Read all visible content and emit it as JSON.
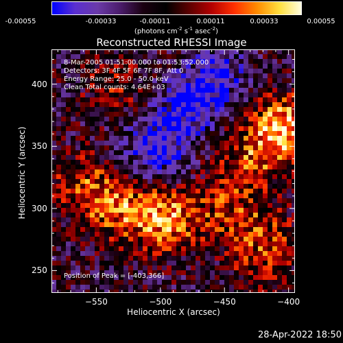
{
  "colorbar": {
    "ticks": [
      "-0.00055",
      "-0.00033",
      "-0.00011",
      "0.00011",
      "0.00033",
      "0.00055"
    ],
    "unit_main": "(photons cm",
    "unit_sup1": "-2",
    "unit_mid1": " s",
    "unit_sup2": "-1",
    "unit_mid2": " asec",
    "unit_sup3": "-2",
    "unit_end": ")",
    "colors": [
      "#0000ff",
      "#5a2fd0",
      "#6a3aa8",
      "#4a1c6a",
      "#1a0010",
      "#000000",
      "#5a0000",
      "#b30000",
      "#ff3000",
      "#ff8c00",
      "#ffe040",
      "#ffffe8"
    ]
  },
  "info": {
    "line1": "8-Mar-2005 01:51:00.000 to 01:53:52.000",
    "line2": "Detectors: 3F 4F 5F 6F 7F 8F, Att 0",
    "line3": "Energy Range: 25.0 - 50.0 keV",
    "line4": "Clean    Total counts: 4.64E+03",
    "peak": "Position of Peak = [-403,366]"
  },
  "footer": {
    "timestamp": "28-Apr-2022 18:50"
  },
  "chart_data": {
    "type": "heatmap",
    "title": "Reconstructed RHESSI Image",
    "xlabel": "Heliocentric X (arcsec)",
    "ylabel": "Heliocentric Y (arcsec)",
    "xlim": [
      -585,
      -395
    ],
    "ylim": [
      232,
      428
    ],
    "xticks": [
      -550,
      -500,
      -450,
      -400
    ],
    "yticks": [
      250,
      300,
      350,
      400
    ],
    "xtick_labels": [
      "−550",
      "−500",
      "−450",
      "−400"
    ],
    "ytick_labels": [
      "250",
      "300",
      "350",
      "400"
    ],
    "value_range": [
      -0.00055,
      0.00055
    ],
    "sources": [
      {
        "x": -403,
        "y": 366,
        "value": 0.00055
      },
      {
        "x": -495,
        "y": 292,
        "value": 0.00048
      },
      {
        "x": -532,
        "y": 300,
        "value": 0.00035
      },
      {
        "x": -560,
        "y": 318,
        "value": 0.0003
      },
      {
        "x": -448,
        "y": 300,
        "value": 0.00025
      },
      {
        "x": -430,
        "y": 340,
        "value": 0.00032
      },
      {
        "x": -420,
        "y": 280,
        "value": 0.00022
      },
      {
        "x": -535,
        "y": 398,
        "value": 0.0002
      },
      {
        "x": -420,
        "y": 255,
        "value": 0.00018
      },
      {
        "x": -505,
        "y": 345,
        "value": -0.0004
      },
      {
        "x": -480,
        "y": 382,
        "value": -0.00035
      },
      {
        "x": -455,
        "y": 405,
        "value": -0.0003
      }
    ]
  }
}
